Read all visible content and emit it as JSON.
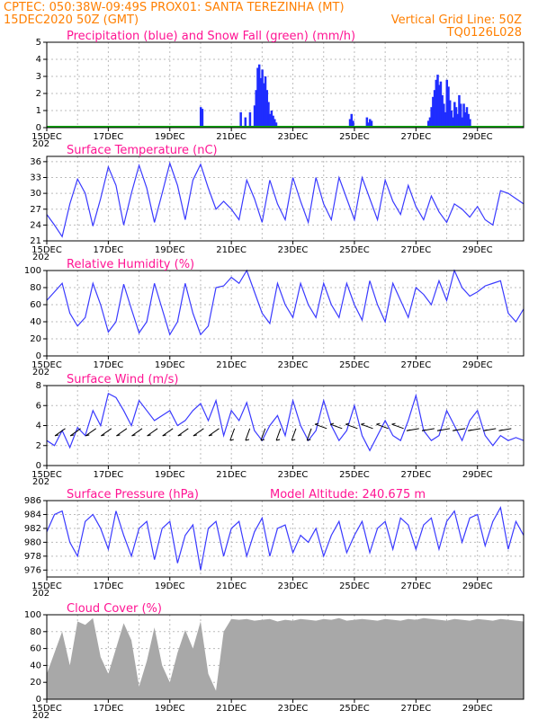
{
  "header": {
    "line1_left": "CPTEC:  050:38W-09:49S  PROX01: SANTA TEREZINHA (MT)",
    "line2_left": "15DEC2020 50Z (GMT)",
    "line2_right": "Vertical Grid Line: 50Z",
    "line3_right": "TQ0126L028"
  },
  "colors": {
    "header": "#ff7f00",
    "panel_title": "#ff1493",
    "line": "#3a3aff",
    "precip": "#1f2dff",
    "snow": "#00aa00",
    "cloud": "#a8a8a8",
    "arrows": "#000000"
  },
  "x_axis": {
    "tick_labels": [
      "15DEC",
      "17DEC",
      "19DEC",
      "21DEC",
      "23DEC",
      "25DEC",
      "27DEC",
      "29DEC"
    ],
    "year_fragment": "202"
  },
  "chart_data": [
    {
      "type": "bar",
      "title": "Precipitation (blue) and Snow Fall (green) (mm/h)",
      "ylim": [
        0,
        5
      ],
      "yticks": [
        "0",
        "1",
        "2",
        "3",
        "4",
        "5"
      ],
      "series": [
        {
          "name": "Precipitation",
          "x": [
            5.0,
            5.05,
            6.3,
            6.45,
            6.6,
            6.75,
            6.8,
            6.85,
            6.9,
            6.95,
            7.0,
            7.05,
            7.1,
            7.15,
            7.2,
            7.25,
            7.3,
            7.35,
            7.4,
            7.45,
            9.85,
            9.9,
            9.95,
            10.4,
            10.45,
            10.5,
            10.55,
            12.4,
            12.45,
            12.5,
            12.55,
            12.6,
            12.65,
            12.7,
            12.75,
            12.8,
            12.85,
            12.9,
            12.95,
            13.0,
            13.05,
            13.1,
            13.15,
            13.2,
            13.25,
            13.3,
            13.35,
            13.4,
            13.45,
            13.5,
            13.55,
            13.6,
            13.65,
            13.7,
            13.75
          ],
          "values": [
            1.2,
            1.1,
            0.9,
            0.6,
            0.9,
            1.3,
            2.2,
            3.5,
            3.7,
            2.9,
            3.4,
            2.6,
            3.0,
            2.2,
            1.5,
            0.8,
            1.0,
            0.7,
            0.5,
            0.3,
            0.5,
            0.8,
            0.4,
            0.6,
            0.3,
            0.5,
            0.4,
            0.4,
            0.6,
            1.2,
            1.8,
            2.2,
            2.8,
            3.1,
            2.5,
            2.7,
            1.9,
            1.4,
            0.9,
            2.8,
            2.4,
            1.6,
            1.0,
            0.6,
            1.5,
            1.2,
            0.8,
            1.9,
            1.4,
            0.6,
            1.4,
            0.9,
            1.2,
            0.8,
            0.5
          ]
        },
        {
          "name": "Snow Fall",
          "x": [
            0,
            15.6
          ],
          "values": [
            0,
            0
          ]
        }
      ]
    },
    {
      "type": "line",
      "title": "Surface Temperature (nC)",
      "ylim": [
        21,
        37
      ],
      "yticks": [
        "21",
        "24",
        "27",
        "30",
        "33",
        "36"
      ],
      "x": [
        0,
        0.25,
        0.5,
        0.75,
        1.0,
        1.25,
        1.5,
        1.75,
        2.0,
        2.25,
        2.5,
        2.75,
        3.0,
        3.25,
        3.5,
        3.75,
        4.0,
        4.25,
        4.5,
        4.75,
        5.0,
        5.25,
        5.5,
        5.75,
        6.0,
        6.25,
        6.5,
        6.75,
        7.0,
        7.25,
        7.5,
        7.75,
        8.0,
        8.25,
        8.5,
        8.75,
        9.0,
        9.25,
        9.5,
        9.75,
        10.0,
        10.25,
        10.5,
        10.75,
        11.0,
        11.25,
        11.5,
        11.75,
        12.0,
        12.25,
        12.5,
        12.75,
        13.0,
        13.25,
        13.5,
        13.75,
        14.0,
        14.25,
        14.5,
        14.75,
        15.0,
        15.25,
        15.5
      ],
      "values": [
        26,
        24,
        21.8,
        28,
        32.7,
        30,
        23.8,
        29,
        35,
        31.5,
        24,
        30,
        35.3,
        31,
        24.5,
        30,
        35.7,
        31.5,
        25,
        32.5,
        35.5,
        31,
        27,
        28.5,
        27,
        25,
        32.5,
        29,
        24.5,
        32.5,
        28,
        25,
        33,
        28.5,
        24.5,
        33,
        28,
        25,
        33,
        29,
        25,
        33,
        29,
        25,
        32.5,
        28.5,
        26,
        31.5,
        27.5,
        25,
        29.5,
        26.5,
        24.5,
        28,
        27,
        25.5,
        27.5,
        25,
        24,
        30.5,
        30,
        29,
        28
      ]
    },
    {
      "type": "line",
      "title": "Relative Humidity (%)",
      "ylim": [
        0,
        100
      ],
      "yticks": [
        "0",
        "20",
        "40",
        "60",
        "80",
        "100"
      ],
      "x": [
        0,
        0.25,
        0.5,
        0.75,
        1.0,
        1.25,
        1.5,
        1.75,
        2.0,
        2.25,
        2.5,
        2.75,
        3.0,
        3.25,
        3.5,
        3.75,
        4.0,
        4.25,
        4.5,
        4.75,
        5.0,
        5.25,
        5.5,
        5.75,
        6.0,
        6.25,
        6.5,
        6.75,
        7.0,
        7.25,
        7.5,
        7.75,
        8.0,
        8.25,
        8.5,
        8.75,
        9.0,
        9.25,
        9.5,
        9.75,
        10.0,
        10.25,
        10.5,
        10.75,
        11.0,
        11.25,
        11.5,
        11.75,
        12.0,
        12.25,
        12.5,
        12.75,
        13.0,
        13.25,
        13.5,
        13.75,
        14.0,
        14.25,
        14.5,
        14.75,
        15.0,
        15.25,
        15.5
      ],
      "values": [
        65,
        75,
        85,
        50,
        35,
        45,
        85,
        60,
        28,
        40,
        84,
        55,
        27,
        40,
        85,
        55,
        25,
        40,
        85,
        50,
        25,
        35,
        80,
        82,
        92,
        85,
        100,
        75,
        50,
        38,
        85,
        60,
        45,
        85,
        60,
        45,
        85,
        60,
        45,
        85,
        60,
        42,
        88,
        60,
        40,
        85,
        65,
        45,
        80,
        72,
        60,
        88,
        65,
        100,
        80,
        70,
        75,
        82,
        85,
        88,
        50,
        40,
        55
      ]
    },
    {
      "type": "line",
      "title": "Surface Wind (m/s)",
      "ylim": [
        0,
        8
      ],
      "yticks": [
        "0",
        "2",
        "4",
        "6",
        "8"
      ],
      "x": [
        0,
        0.25,
        0.5,
        0.75,
        1.0,
        1.25,
        1.5,
        1.75,
        2.0,
        2.25,
        2.5,
        2.75,
        3.0,
        3.25,
        3.5,
        3.75,
        4.0,
        4.25,
        4.5,
        4.75,
        5.0,
        5.25,
        5.5,
        5.75,
        6.0,
        6.25,
        6.5,
        6.75,
        7.0,
        7.25,
        7.5,
        7.75,
        8.0,
        8.25,
        8.5,
        8.75,
        9.0,
        9.25,
        9.5,
        9.75,
        10.0,
        10.25,
        10.5,
        10.75,
        11.0,
        11.25,
        11.5,
        11.75,
        12.0,
        12.25,
        12.5,
        12.75,
        13.0,
        13.25,
        13.5,
        13.75,
        14.0,
        14.25,
        14.5,
        14.75,
        15.0,
        15.25,
        15.5
      ],
      "values": [
        2.5,
        2,
        3.5,
        1.8,
        3.8,
        3,
        5.5,
        4,
        7.2,
        6.8,
        5.5,
        4,
        6.5,
        5.5,
        4.5,
        5,
        5.5,
        4,
        4.5,
        5.5,
        6.2,
        4.5,
        6.5,
        3,
        5.5,
        4.5,
        6.3,
        3.5,
        2.5,
        4,
        5,
        3,
        6.5,
        4,
        2.5,
        3.5,
        6.5,
        4,
        2.5,
        3.5,
        6,
        3,
        1.5,
        3,
        4.5,
        3,
        2.5,
        4.5,
        7,
        3.5,
        2.5,
        3,
        5.5,
        4,
        2.5,
        4.5,
        5.5,
        3,
        2,
        3,
        2.5,
        2.8,
        2.5
      ],
      "arrows_note": "wind direction arrows"
    },
    {
      "type": "line",
      "title": "Surface Pressure (hPa)",
      "annotation": "Model Altitude: 240.675  m",
      "ylim": [
        975,
        986
      ],
      "yticks": [
        "976",
        "978",
        "980",
        "982",
        "984",
        "986"
      ],
      "x": [
        0,
        0.25,
        0.5,
        0.75,
        1.0,
        1.25,
        1.5,
        1.75,
        2.0,
        2.25,
        2.5,
        2.75,
        3.0,
        3.25,
        3.5,
        3.75,
        4.0,
        4.25,
        4.5,
        4.75,
        5.0,
        5.25,
        5.5,
        5.75,
        6.0,
        6.25,
        6.5,
        6.75,
        7.0,
        7.25,
        7.5,
        7.75,
        8.0,
        8.25,
        8.5,
        8.75,
        9.0,
        9.25,
        9.5,
        9.75,
        10.0,
        10.25,
        10.5,
        10.75,
        11.0,
        11.25,
        11.5,
        11.75,
        12.0,
        12.25,
        12.5,
        12.75,
        13.0,
        13.25,
        13.5,
        13.75,
        14.0,
        14.25,
        14.5,
        14.75,
        15.0,
        15.25,
        15.5
      ],
      "values": [
        981.5,
        984,
        984.5,
        980,
        978,
        983,
        984,
        982,
        979,
        984.5,
        981,
        978,
        982,
        983,
        977.5,
        982,
        983,
        977,
        981,
        982.5,
        976,
        982,
        983,
        978,
        982,
        983,
        978,
        981.5,
        983.5,
        978,
        982,
        982.5,
        978.5,
        981,
        980,
        982,
        978,
        981,
        983,
        978.5,
        981,
        983,
        978.5,
        982,
        983,
        979,
        983.5,
        982.5,
        979,
        982.5,
        983.5,
        979,
        983,
        984.5,
        980,
        983.5,
        984,
        979.5,
        983,
        985,
        979,
        983,
        981
      ]
    },
    {
      "type": "area",
      "title": "Cloud Cover (%)",
      "ylim": [
        0,
        100
      ],
      "yticks": [
        "0",
        "20",
        "40",
        "60",
        "80",
        "100"
      ],
      "x": [
        0,
        0.25,
        0.5,
        0.75,
        1.0,
        1.25,
        1.5,
        1.75,
        2.0,
        2.25,
        2.5,
        2.75,
        3.0,
        3.25,
        3.5,
        3.75,
        4.0,
        4.25,
        4.5,
        4.75,
        5.0,
        5.25,
        5.5,
        5.75,
        6.0,
        6.25,
        6.5,
        6.75,
        7.0,
        7.25,
        7.5,
        7.75,
        8.0,
        8.25,
        8.5,
        8.75,
        9.0,
        9.25,
        9.5,
        9.75,
        10.0,
        10.25,
        10.5,
        10.75,
        11.0,
        11.25,
        11.5,
        11.75,
        12.0,
        12.25,
        12.5,
        12.75,
        13.0,
        13.25,
        13.5,
        13.75,
        14.0,
        14.25,
        14.5,
        14.75,
        15.0,
        15.25,
        15.5
      ],
      "values": [
        30,
        55,
        80,
        40,
        92,
        88,
        96,
        50,
        30,
        60,
        90,
        70,
        15,
        45,
        85,
        40,
        20,
        55,
        82,
        60,
        92,
        30,
        10,
        80,
        95,
        94,
        95,
        93,
        94,
        95,
        92,
        94,
        93,
        95,
        94,
        93,
        95,
        94,
        96,
        93,
        94,
        95,
        94,
        93,
        95,
        94,
        93,
        95,
        94,
        96,
        95,
        94,
        93,
        95,
        94,
        93,
        95,
        94,
        93,
        95,
        94,
        93,
        92
      ]
    }
  ]
}
